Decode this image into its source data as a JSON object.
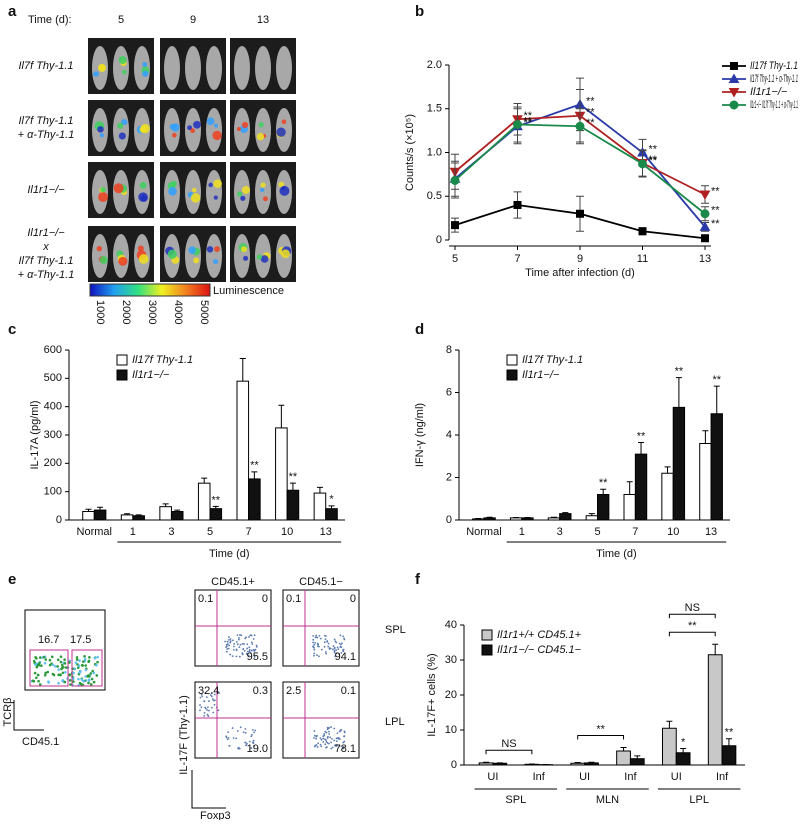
{
  "panel_a": {
    "panel_label": "a",
    "time_label": "Time (d):",
    "days": [
      "5",
      "9",
      "13"
    ],
    "rows": [
      [
        "Il7f Thy-1.1"
      ],
      [
        "Il7f Thy-1.1",
        "+ α-Thy-1.1"
      ],
      [
        "Il1r1−/−"
      ],
      [
        "Il1r1−/−",
        "x",
        "Il7f Thy-1.1",
        "+ α-Thy-1.1"
      ]
    ],
    "colorbar": {
      "label": "Luminescence",
      "ticks": [
        "1000",
        "2000",
        "3000",
        "4000",
        "5000"
      ]
    }
  },
  "panel_e": {
    "panel_label": "e",
    "gate": {
      "values": [
        "16.7",
        "17.5"
      ],
      "y_label": "TCRβ",
      "x_label": "CD45.1"
    },
    "columns": [
      "CD45.1+",
      "CD45.1−"
    ],
    "rows": [
      "SPL",
      "LPL"
    ],
    "quadrants": [
      [
        [
          "0.1",
          "0",
          "95.5"
        ],
        [
          "0.1",
          "0",
          "94.1"
        ]
      ],
      [
        [
          "32.4",
          "0.3",
          "19.0"
        ],
        [
          "2.5",
          "0.1",
          "78.1"
        ]
      ]
    ],
    "y_label": "IL-17F (Thy-1.1)",
    "x_label": "Foxp3"
  },
  "chart_data": [
    {
      "type": "line",
      "panel_label": "b",
      "x_label": "Time after infection (d)",
      "y_label": "Counts/s (×10⁵)",
      "x": [
        5,
        7,
        9,
        11,
        13
      ],
      "xlim": [
        5,
        13
      ],
      "xticks": [
        5,
        7,
        9,
        11,
        13
      ],
      "ylim": [
        0,
        2
      ],
      "yticks": [
        0,
        0.5,
        {
          "value": 1,
          "label": "1.0"
        },
        1.5,
        {
          "value": 2,
          "label": "2.0"
        }
      ],
      "legend": "upper right",
      "series": [
        {
          "name": "Il17f Thy-1.1",
          "color": "#000000",
          "marker": "square",
          "values": [
            0.17,
            0.4,
            0.3,
            0.1,
            0.02
          ],
          "errors": [
            0.08,
            0.15,
            0.2,
            0.04,
            0.02
          ]
        },
        {
          "name": "Il17f Thy-1.1 + α-Thy-1.1",
          "color": "#2a3aa8",
          "marker": "triangle-up",
          "values": [
            0.7,
            1.3,
            1.55,
            1.0,
            0.15
          ],
          "errors": [
            0.2,
            0.2,
            0.3,
            0.15,
            0.05
          ],
          "significance": [
            null,
            "**",
            "**",
            "**",
            "**"
          ]
        },
        {
          "name": "Il1r1−/−",
          "color": "#b02020",
          "marker": "triangle-down",
          "values": [
            0.78,
            1.38,
            1.42,
            0.88,
            0.52
          ],
          "errors": [
            0.2,
            0.18,
            0.3,
            0.15,
            0.1
          ],
          "significance": [
            null,
            "**",
            "**",
            "**",
            "**"
          ]
        },
        {
          "name": "Il1r1−/− Il17f Thy-1.1 + α-Thy-1.1",
          "color": "#1a8a4a",
          "marker": "circle",
          "values": [
            0.68,
            1.32,
            1.3,
            0.87,
            0.3
          ],
          "errors": [
            0.2,
            0.2,
            0.2,
            0.15,
            0.08
          ],
          "significance": [
            null,
            "**",
            "**",
            "**",
            "**"
          ]
        }
      ]
    },
    {
      "type": "bar",
      "panel_label": "c",
      "x_label": "Time (d)",
      "y_label": "IL-17A (pg/ml)",
      "categories": [
        "Normal",
        "1",
        "3",
        "5",
        "7",
        "10",
        "13"
      ],
      "ylim": [
        0,
        600
      ],
      "yticks": [
        0,
        100,
        200,
        300,
        400,
        500,
        600
      ],
      "legend": "upper left",
      "series": [
        {
          "name": "Il17f Thy-1.1",
          "color": "#ffffff",
          "values": [
            30,
            18,
            47,
            130,
            490,
            325,
            95
          ],
          "errors": [
            8,
            4,
            10,
            18,
            80,
            80,
            20
          ]
        },
        {
          "name": "Il1r1−/−",
          "color": "#111111",
          "values": [
            35,
            15,
            30,
            40,
            145,
            105,
            40
          ],
          "errors": [
            10,
            3,
            5,
            8,
            25,
            25,
            10
          ],
          "significance": [
            null,
            null,
            null,
            "**",
            "**",
            "**",
            "*"
          ]
        }
      ]
    },
    {
      "type": "bar",
      "panel_label": "d",
      "x_label": "Time (d)",
      "y_label": "IFN-γ (ng/ml)",
      "categories": [
        "Normal",
        "1",
        "3",
        "5",
        "7",
        "10",
        "13"
      ],
      "ylim": [
        0,
        8
      ],
      "yticks": [
        0,
        2,
        4,
        6,
        8
      ],
      "legend": "upper left",
      "series": [
        {
          "name": "Il17f Thy-1.1",
          "color": "#ffffff",
          "values": [
            0.05,
            0.1,
            0.1,
            0.2,
            1.2,
            2.2,
            3.6
          ],
          "errors": [
            0.02,
            0.02,
            0.03,
            0.1,
            0.6,
            0.3,
            0.6
          ]
        },
        {
          "name": "Il1r1−/−",
          "color": "#111111",
          "values": [
            0.1,
            0.1,
            0.3,
            1.2,
            3.1,
            5.3,
            5.0
          ],
          "errors": [
            0.03,
            0.02,
            0.05,
            0.25,
            0.55,
            1.4,
            1.3
          ],
          "significance": [
            null,
            null,
            null,
            "**",
            "**",
            "**",
            "**"
          ]
        }
      ]
    },
    {
      "type": "bar",
      "panel_label": "f",
      "y_label": "IL-17F+ cells (%)",
      "categories": [
        "UI",
        "Inf",
        "UI",
        "Inf",
        "UI",
        "Inf"
      ],
      "groups": [
        "SPL",
        "MLN",
        "LPL"
      ],
      "ylim": [
        0,
        40
      ],
      "yticks": [
        0,
        10,
        20,
        30,
        40
      ],
      "legend": "upper left",
      "comparisons": [
        {
          "categories": [
            0,
            1
          ],
          "label": "NS"
        },
        {
          "categories": [
            2,
            3
          ],
          "label": "**"
        },
        {
          "categories": [
            4,
            5
          ],
          "label": "**"
        },
        {
          "categories": [
            4,
            5
          ],
          "label": "NS"
        }
      ],
      "series": [
        {
          "name": "Il1r1+/+ CD45.1+",
          "color": "#c8c8c8",
          "values": [
            0.6,
            0.2,
            0.5,
            4.0,
            10.5,
            31.5
          ],
          "errors": [
            0.2,
            0.1,
            0.2,
            1.0,
            2.0,
            3.0
          ]
        },
        {
          "name": "Il1r1−/− CD45.1−",
          "color": "#111111",
          "values": [
            0.5,
            0.1,
            0.6,
            1.8,
            3.5,
            5.5
          ],
          "errors": [
            0.1,
            0.05,
            0.2,
            0.8,
            1.2,
            2.0
          ],
          "significance": [
            null,
            null,
            null,
            null,
            "*",
            "**"
          ]
        }
      ]
    }
  ]
}
